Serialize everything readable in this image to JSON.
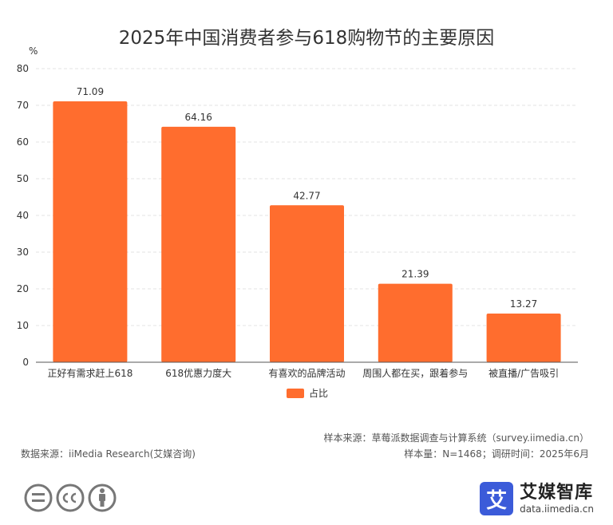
{
  "chart_data": {
    "type": "bar",
    "title": "2025年中国消费者参与618购物节的主要原因",
    "ylabel": "%",
    "xlabel": "",
    "categories": [
      "正好有需求赶上618",
      "618优惠力度大",
      "有喜欢的品牌活动",
      "周围人都在买，跟着参与",
      "被直播/广告吸引"
    ],
    "series": [
      {
        "name": "占比",
        "values": [
          71.09,
          64.16,
          42.77,
          21.39,
          13.27
        ]
      }
    ],
    "value_labels": [
      "71.09",
      "64.16",
      "42.77",
      "21.39",
      "13.27"
    ],
    "ylim": [
      0,
      80
    ],
    "yticks": [
      0,
      10,
      20,
      30,
      40,
      50,
      60,
      70,
      80
    ],
    "ytick_labels": [
      "0",
      "10",
      "20",
      "30",
      "40",
      "50",
      "60",
      "70",
      "80"
    ],
    "grid": true,
    "legend_position": "bottom",
    "bar_color": "#ff6d2e"
  },
  "footer": {
    "sample_source": "样本来源：草莓派数据调查与计算系统（survey.iimedia.cn）",
    "sample_info": "样本量：N=1468；调研时间：2025年6月",
    "data_source": "数据来源：iiMedia Research(艾媒咨询)"
  },
  "brand": {
    "logo_char": "艾",
    "name": "艾媒智库",
    "url": "data.iimedia.cn",
    "color": "#3b5bd9"
  },
  "icons": [
    "equals-icon",
    "cc-icon",
    "person-icon"
  ]
}
